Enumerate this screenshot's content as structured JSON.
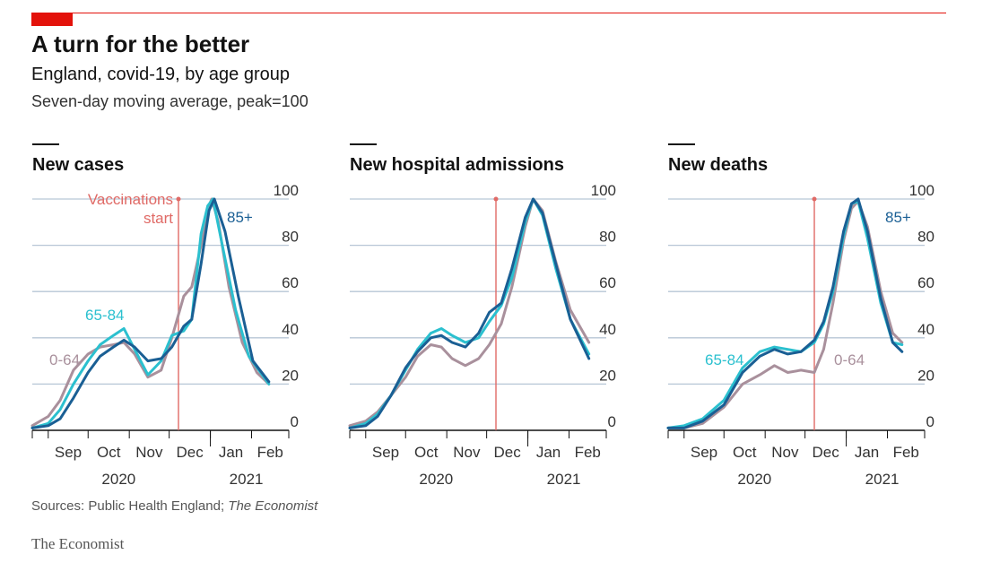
{
  "title": "A turn for the better",
  "subtitle": "England, covid-19, by age group",
  "note": "Seven-day moving average, peak=100",
  "source_prefix": "Sources: Public Health England; ",
  "source_italic": "The Economist",
  "brand": "The Economist",
  "colors": {
    "accent": "#e3120b",
    "series_0_64": "#a9909c",
    "series_65_84": "#2bc0cf",
    "series_85_plus": "#1a5f94",
    "vaccination_line": "#e06a66",
    "grid": "#b7c6d6"
  },
  "chart_data": [
    {
      "type": "line",
      "title": "New cases",
      "ylim": [
        0,
        100
      ],
      "yticks": [
        0,
        20,
        40,
        60,
        80,
        100
      ],
      "xticks": [
        "Sep",
        "Oct",
        "Nov",
        "Dec",
        "Jan",
        "Feb"
      ],
      "years": [
        "2020",
        "2021"
      ],
      "annotations": [
        {
          "text": "Vaccinations",
          "date": "2020-12-08"
        },
        {
          "text": "start",
          "date": "2020-12-08"
        },
        {
          "text": "65-84",
          "series": "65-84"
        },
        {
          "text": "0-64",
          "series": "0-64"
        },
        {
          "text": "85+",
          "series": "85+"
        }
      ],
      "series": [
        {
          "name": "0-64",
          "points": [
            [
              "2020-08-20",
              2
            ],
            [
              "2020-09-01",
              6
            ],
            [
              "2020-09-10",
              13
            ],
            [
              "2020-09-20",
              26
            ],
            [
              "2020-10-01",
              33
            ],
            [
              "2020-10-10",
              36
            ],
            [
              "2020-10-20",
              37
            ],
            [
              "2020-10-28",
              38
            ],
            [
              "2020-11-05",
              33
            ],
            [
              "2020-11-15",
              23
            ],
            [
              "2020-11-25",
              26
            ],
            [
              "2020-12-03",
              40
            ],
            [
              "2020-12-12",
              58
            ],
            [
              "2020-12-18",
              62
            ],
            [
              "2020-12-25",
              80
            ],
            [
              "2020-12-30",
              96
            ],
            [
              "2021-01-02",
              100
            ],
            [
              "2021-01-07",
              90
            ],
            [
              "2021-01-15",
              62
            ],
            [
              "2021-01-25",
              38
            ],
            [
              "2021-02-05",
              25
            ],
            [
              "2021-02-14",
              20
            ]
          ]
        },
        {
          "name": "65-84",
          "points": [
            [
              "2020-08-20",
              1
            ],
            [
              "2020-09-01",
              3
            ],
            [
              "2020-09-10",
              9
            ],
            [
              "2020-09-20",
              20
            ],
            [
              "2020-10-01",
              30
            ],
            [
              "2020-10-10",
              37
            ],
            [
              "2020-10-20",
              41
            ],
            [
              "2020-10-28",
              44
            ],
            [
              "2020-11-05",
              35
            ],
            [
              "2020-11-15",
              24
            ],
            [
              "2020-11-25",
              30
            ],
            [
              "2020-12-03",
              41
            ],
            [
              "2020-12-12",
              43
            ],
            [
              "2020-12-18",
              48
            ],
            [
              "2020-12-25",
              85
            ],
            [
              "2020-12-30",
              97
            ],
            [
              "2021-01-03",
              100
            ],
            [
              "2021-01-10",
              80
            ],
            [
              "2021-01-20",
              52
            ],
            [
              "2021-01-30",
              32
            ],
            [
              "2021-02-14",
              20
            ]
          ]
        },
        {
          "name": "85+",
          "points": [
            [
              "2020-08-20",
              1
            ],
            [
              "2020-09-01",
              2
            ],
            [
              "2020-09-10",
              5
            ],
            [
              "2020-09-20",
              14
            ],
            [
              "2020-10-01",
              25
            ],
            [
              "2020-10-10",
              32
            ],
            [
              "2020-10-20",
              36
            ],
            [
              "2020-10-28",
              39
            ],
            [
              "2020-11-05",
              36
            ],
            [
              "2020-11-15",
              30
            ],
            [
              "2020-11-25",
              31
            ],
            [
              "2020-12-03",
              36
            ],
            [
              "2020-12-12",
              45
            ],
            [
              "2020-12-18",
              48
            ],
            [
              "2020-12-25",
              72
            ],
            [
              "2020-12-31",
              95
            ],
            [
              "2021-01-04",
              100
            ],
            [
              "2021-01-12",
              86
            ],
            [
              "2021-01-22",
              58
            ],
            [
              "2021-02-02",
              30
            ],
            [
              "2021-02-14",
              21
            ]
          ]
        }
      ]
    },
    {
      "type": "line",
      "title": "New hospital admissions",
      "ylim": [
        0,
        100
      ],
      "yticks": [
        0,
        20,
        40,
        60,
        80,
        100
      ],
      "xticks": [
        "Sep",
        "Oct",
        "Nov",
        "Dec",
        "Jan",
        "Feb"
      ],
      "years": [
        "2020",
        "2021"
      ],
      "annotations": [],
      "series": [
        {
          "name": "0-64",
          "points": [
            [
              "2020-08-20",
              2
            ],
            [
              "2020-09-01",
              4
            ],
            [
              "2020-09-10",
              8
            ],
            [
              "2020-09-20",
              15
            ],
            [
              "2020-10-01",
              23
            ],
            [
              "2020-10-10",
              32
            ],
            [
              "2020-10-20",
              37
            ],
            [
              "2020-10-28",
              36
            ],
            [
              "2020-11-05",
              31
            ],
            [
              "2020-11-15",
              28
            ],
            [
              "2020-11-25",
              31
            ],
            [
              "2020-12-03",
              37
            ],
            [
              "2020-12-12",
              46
            ],
            [
              "2020-12-20",
              62
            ],
            [
              "2020-12-30",
              88
            ],
            [
              "2021-01-05",
              100
            ],
            [
              "2021-01-12",
              95
            ],
            [
              "2021-01-22",
              73
            ],
            [
              "2021-02-02",
              52
            ],
            [
              "2021-02-16",
              38
            ]
          ]
        },
        {
          "name": "65-84",
          "points": [
            [
              "2020-08-20",
              1
            ],
            [
              "2020-09-01",
              3
            ],
            [
              "2020-09-10",
              7
            ],
            [
              "2020-09-20",
              15
            ],
            [
              "2020-10-01",
              26
            ],
            [
              "2020-10-10",
              35
            ],
            [
              "2020-10-20",
              42
            ],
            [
              "2020-10-28",
              44
            ],
            [
              "2020-11-05",
              41
            ],
            [
              "2020-11-15",
              38
            ],
            [
              "2020-11-25",
              40
            ],
            [
              "2020-12-03",
              47
            ],
            [
              "2020-12-12",
              54
            ],
            [
              "2020-12-20",
              66
            ],
            [
              "2020-12-30",
              90
            ],
            [
              "2021-01-05",
              100
            ],
            [
              "2021-01-12",
              93
            ],
            [
              "2021-01-22",
              70
            ],
            [
              "2021-02-02",
              48
            ],
            [
              "2021-02-16",
              33
            ]
          ]
        },
        {
          "name": "85+",
          "points": [
            [
              "2020-08-20",
              1
            ],
            [
              "2020-09-01",
              2
            ],
            [
              "2020-09-10",
              6
            ],
            [
              "2020-09-20",
              15
            ],
            [
              "2020-10-01",
              27
            ],
            [
              "2020-10-10",
              34
            ],
            [
              "2020-10-20",
              40
            ],
            [
              "2020-10-28",
              41
            ],
            [
              "2020-11-05",
              38
            ],
            [
              "2020-11-15",
              36
            ],
            [
              "2020-11-25",
              42
            ],
            [
              "2020-12-03",
              51
            ],
            [
              "2020-12-12",
              55
            ],
            [
              "2020-12-20",
              70
            ],
            [
              "2020-12-30",
              92
            ],
            [
              "2021-01-05",
              100
            ],
            [
              "2021-01-12",
              94
            ],
            [
              "2021-01-22",
              72
            ],
            [
              "2021-02-02",
              48
            ],
            [
              "2021-02-16",
              31
            ]
          ]
        }
      ]
    },
    {
      "type": "line",
      "title": "New deaths",
      "ylim": [
        0,
        100
      ],
      "yticks": [
        0,
        20,
        40,
        60,
        80,
        100
      ],
      "xticks": [
        "Sep",
        "Oct",
        "Nov",
        "Dec",
        "Jan",
        "Feb"
      ],
      "years": [
        "2020",
        "2021"
      ],
      "annotations": [
        {
          "text": "85+",
          "series": "85+"
        },
        {
          "text": "65-84",
          "series": "65-84"
        },
        {
          "text": "0-64",
          "series": "0-64"
        }
      ],
      "series": [
        {
          "name": "0-64",
          "points": [
            [
              "2020-08-20",
              1
            ],
            [
              "2020-09-01",
              1
            ],
            [
              "2020-09-15",
              3
            ],
            [
              "2020-10-01",
              10
            ],
            [
              "2020-10-15",
              20
            ],
            [
              "2020-10-28",
              24
            ],
            [
              "2020-11-08",
              28
            ],
            [
              "2020-11-18",
              25
            ],
            [
              "2020-11-28",
              26
            ],
            [
              "2020-12-08",
              25
            ],
            [
              "2020-12-15",
              35
            ],
            [
              "2020-12-22",
              55
            ],
            [
              "2020-12-30",
              82
            ],
            [
              "2021-01-05",
              96
            ],
            [
              "2021-01-10",
              99
            ],
            [
              "2021-01-17",
              88
            ],
            [
              "2021-01-27",
              60
            ],
            [
              "2021-02-05",
              42
            ],
            [
              "2021-02-12",
              38
            ]
          ]
        },
        {
          "name": "65-84",
          "points": [
            [
              "2020-08-20",
              1
            ],
            [
              "2020-09-01",
              2
            ],
            [
              "2020-09-15",
              5
            ],
            [
              "2020-10-01",
              13
            ],
            [
              "2020-10-15",
              27
            ],
            [
              "2020-10-28",
              34
            ],
            [
              "2020-11-08",
              36
            ],
            [
              "2020-11-18",
              35
            ],
            [
              "2020-11-28",
              34
            ],
            [
              "2020-12-08",
              38
            ],
            [
              "2020-12-15",
              46
            ],
            [
              "2020-12-22",
              60
            ],
            [
              "2020-12-30",
              84
            ],
            [
              "2021-01-05",
              98
            ],
            [
              "2021-01-10",
              99
            ],
            [
              "2021-01-17",
              83
            ],
            [
              "2021-01-27",
              55
            ],
            [
              "2021-02-05",
              38
            ],
            [
              "2021-02-12",
              37
            ]
          ]
        },
        {
          "name": "85+",
          "points": [
            [
              "2020-08-20",
              1
            ],
            [
              "2020-09-01",
              1
            ],
            [
              "2020-09-15",
              4
            ],
            [
              "2020-10-01",
              11
            ],
            [
              "2020-10-15",
              25
            ],
            [
              "2020-10-28",
              32
            ],
            [
              "2020-11-08",
              35
            ],
            [
              "2020-11-18",
              33
            ],
            [
              "2020-11-28",
              34
            ],
            [
              "2020-12-08",
              39
            ],
            [
              "2020-12-15",
              47
            ],
            [
              "2020-12-22",
              62
            ],
            [
              "2020-12-30",
              86
            ],
            [
              "2021-01-05",
              98
            ],
            [
              "2021-01-10",
              100
            ],
            [
              "2021-01-17",
              86
            ],
            [
              "2021-01-27",
              57
            ],
            [
              "2021-02-05",
              38
            ],
            [
              "2021-02-12",
              34
            ]
          ]
        }
      ]
    }
  ]
}
